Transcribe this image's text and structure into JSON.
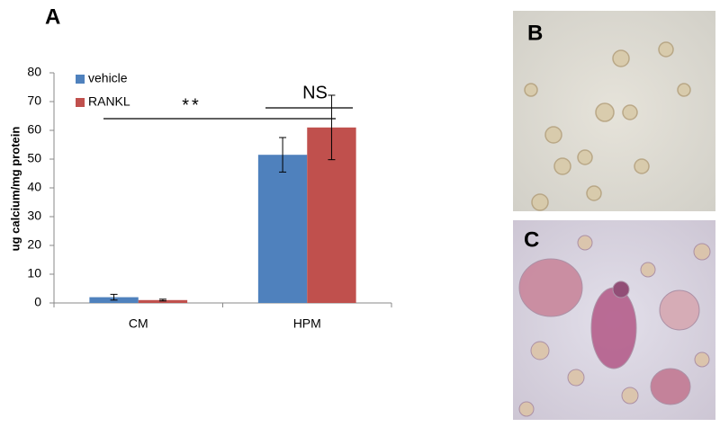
{
  "panel_labels": [
    "A",
    "B",
    "C"
  ],
  "chart_data": {
    "type": "bar",
    "y_label": "ug calcium/mg protein",
    "categories": [
      "CM",
      "HPM"
    ],
    "series": [
      {
        "name": "vehicle",
        "color": "#4f81bd",
        "values": [
          2,
          51.5
        ],
        "errors": [
          1,
          6
        ]
      },
      {
        "name": "RANKL",
        "color": "#c0504d",
        "values": [
          1,
          61
        ],
        "errors": [
          0.3,
          11.2
        ]
      }
    ],
    "ylim": [
      0,
      80
    ],
    "yticks": [
      0,
      10,
      20,
      30,
      40,
      50,
      60,
      70,
      80
    ],
    "legend": "upper left",
    "annotations": [
      "**",
      "NS"
    ]
  }
}
